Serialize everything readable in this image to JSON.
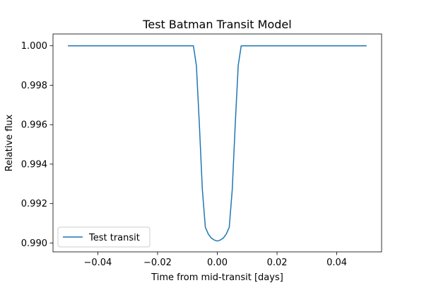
{
  "chart_data": {
    "type": "line",
    "title": "Test Batman Transit Model",
    "xlabel": "Time from mid-transit [days]",
    "ylabel": "Relative flux",
    "xlim": [
      -0.055,
      0.055
    ],
    "ylim": [
      0.98955,
      1.0006
    ],
    "xticks": [
      -0.04,
      -0.02,
      0.0,
      0.02,
      0.04
    ],
    "xtick_labels": [
      "−0.04",
      "−0.02",
      "0.00",
      "0.02",
      "0.04"
    ],
    "yticks": [
      0.99,
      0.992,
      0.994,
      0.996,
      0.998,
      1.0
    ],
    "ytick_labels": [
      "0.990",
      "0.992",
      "0.994",
      "0.996",
      "0.998",
      "1.000"
    ],
    "grid": false,
    "legend_position": "lower left",
    "series": [
      {
        "name": "Test transit",
        "color": "#1f77b4",
        "x": [
          -0.05,
          -0.009,
          -0.008,
          -0.007,
          -0.006,
          -0.005,
          -0.004,
          -0.003,
          -0.002,
          -0.001,
          0.0,
          0.001,
          0.002,
          0.003,
          0.004,
          0.005,
          0.006,
          0.007,
          0.008,
          0.009,
          0.05
        ],
        "y": [
          1.0,
          1.0,
          1.0,
          0.999,
          0.996,
          0.9927,
          0.9908,
          0.99045,
          0.99025,
          0.99015,
          0.9901,
          0.99015,
          0.99025,
          0.99045,
          0.9908,
          0.9927,
          0.996,
          0.999,
          1.0,
          1.0,
          1.0
        ]
      }
    ]
  }
}
